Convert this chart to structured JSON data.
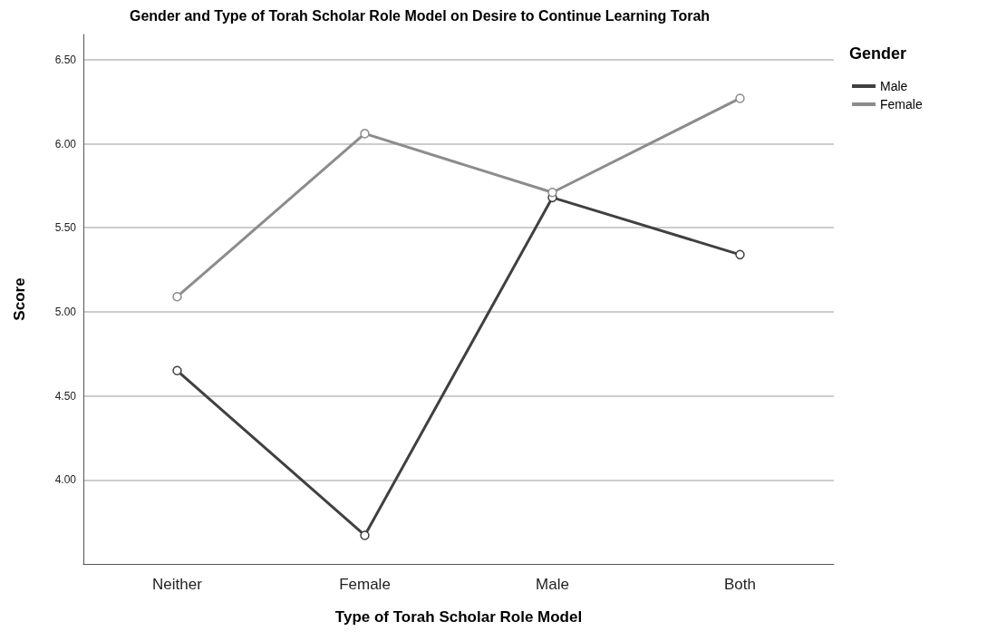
{
  "chart_data": {
    "type": "line",
    "title": "Gender and Type of Torah Scholar Role Model on Desire to Continue Learning Torah",
    "xlabel": "Type of Torah Scholar Role Model",
    "ylabel": "Score",
    "legend_title": "Gender",
    "categories": [
      "Neither",
      "Female",
      "Male",
      "Both"
    ],
    "series": [
      {
        "name": "Male",
        "color": "#404040",
        "values": [
          4.65,
          3.67,
          5.68,
          5.34
        ]
      },
      {
        "name": "Female",
        "color": "#8c8c8c",
        "values": [
          5.09,
          6.06,
          5.71,
          6.27
        ]
      }
    ],
    "ylim": [
      3.5,
      6.65
    ],
    "yticks": [
      {
        "value": 4.0,
        "label": "4.00"
      },
      {
        "value": 4.5,
        "label": "4.50"
      },
      {
        "value": 5.0,
        "label": "5.00"
      },
      {
        "value": 5.5,
        "label": "5.50"
      },
      {
        "value": 6.0,
        "label": "6.00"
      },
      {
        "value": 6.5,
        "label": "6.50"
      }
    ],
    "grid": "y",
    "legend": "top right",
    "marker": "circle",
    "line_style": "solid"
  }
}
